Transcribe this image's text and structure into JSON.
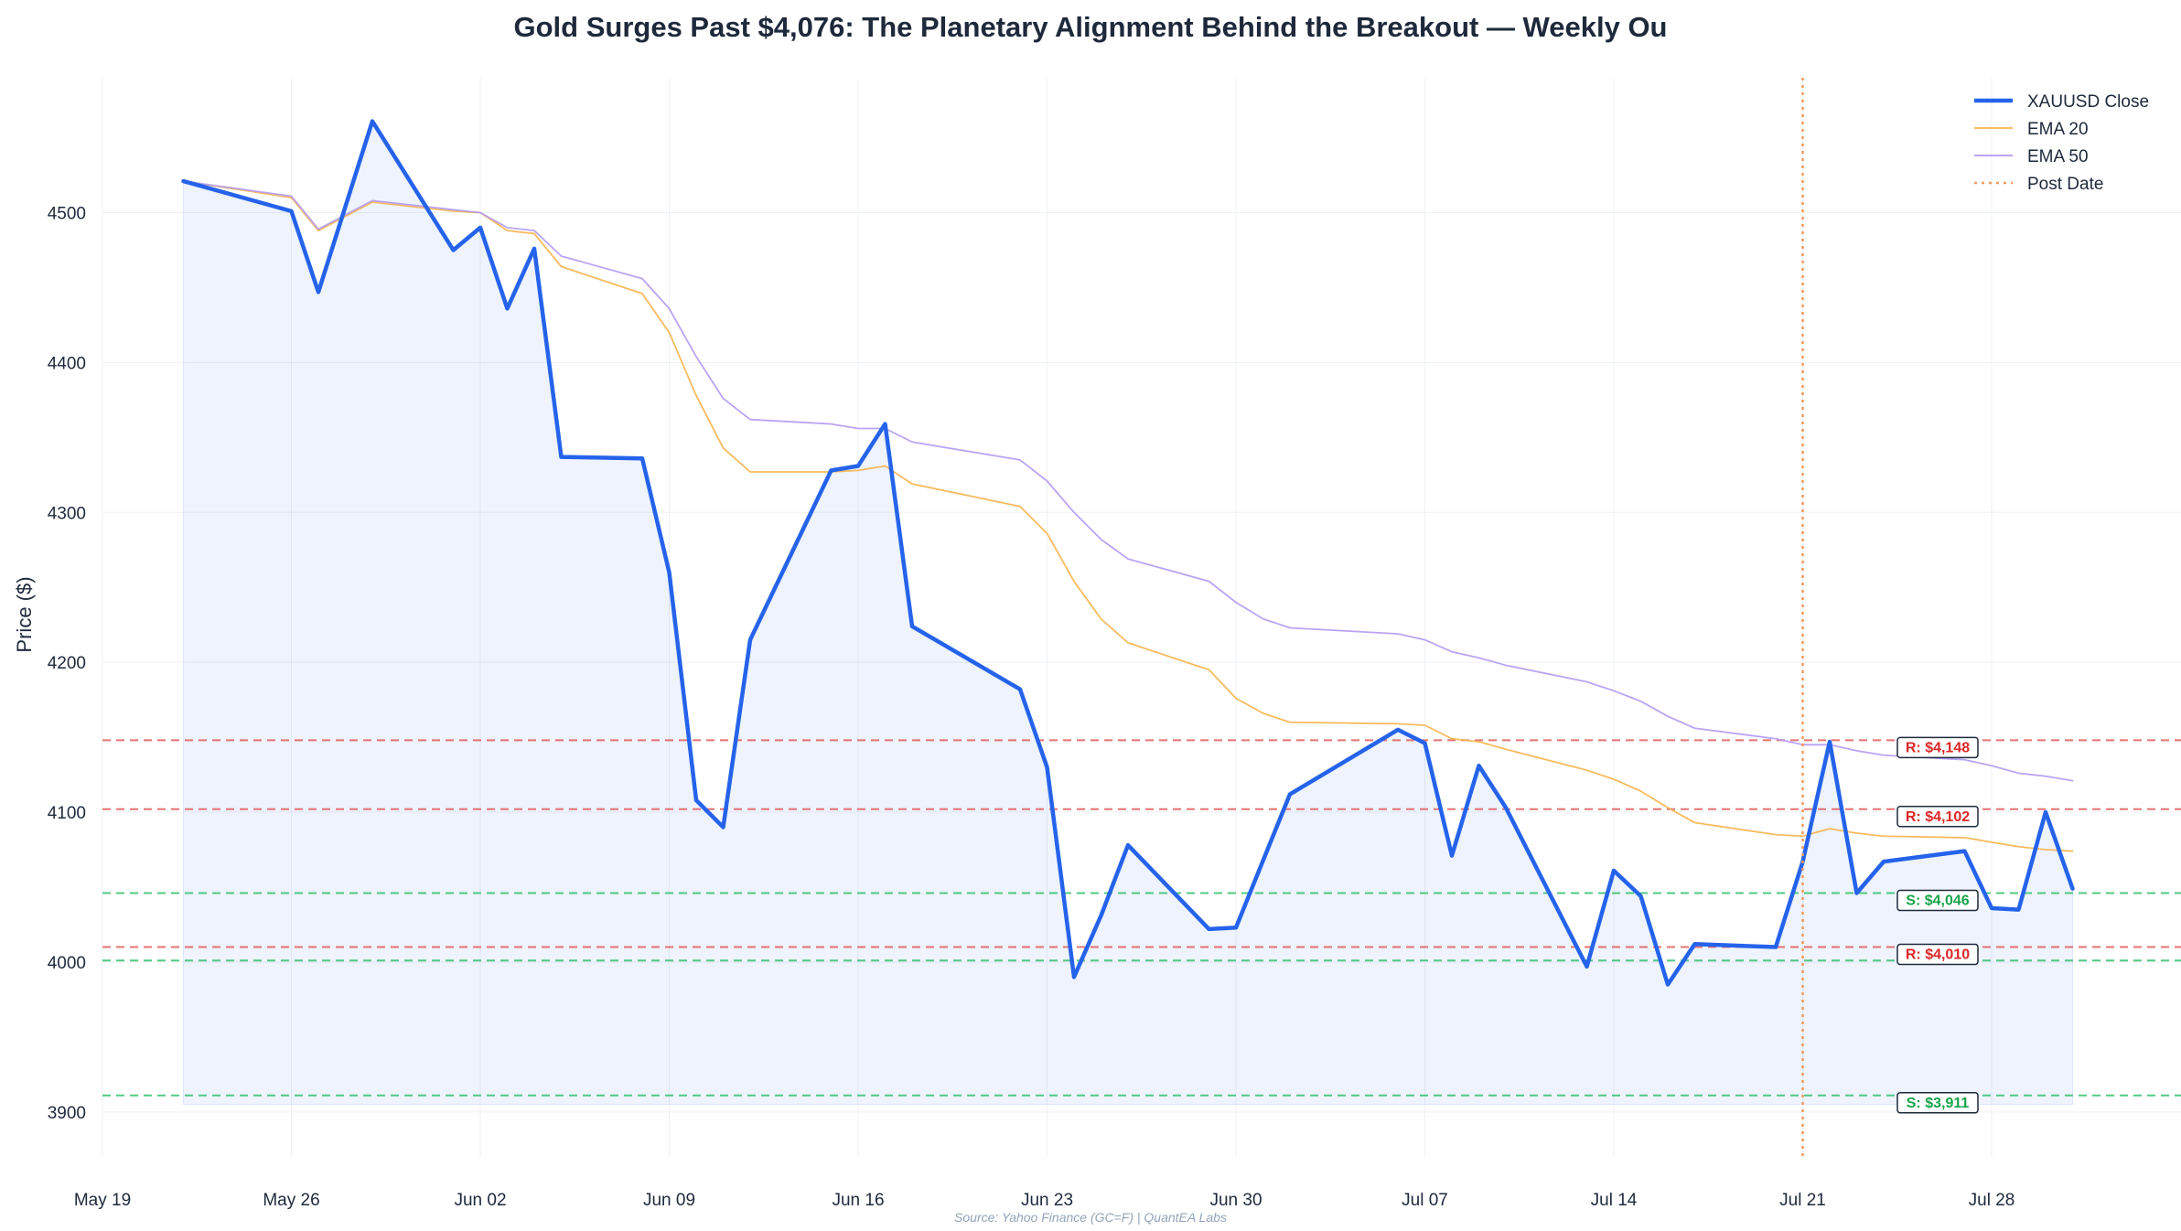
{
  "chart_data": {
    "type": "line",
    "title": "Gold Surges Past $4,076: The Planetary Alignment Behind the Breakout — Weekly Ou",
    "xlabel": "",
    "ylabel": "Price ($)",
    "source": "Source: Yahoo Finance (GC=F) | QuantEA Labs",
    "ylim": [
      3870,
      4590
    ],
    "xlim": [
      "2025-05-19",
      "2025-08-01"
    ],
    "x_ticks": [
      {
        "date": "2025-05-19",
        "label": "May 19"
      },
      {
        "date": "2025-05-26",
        "label": "May 26"
      },
      {
        "date": "2025-06-02",
        "label": "Jun 02"
      },
      {
        "date": "2025-06-09",
        "label": "Jun 09"
      },
      {
        "date": "2025-06-16",
        "label": "Jun 16"
      },
      {
        "date": "2025-06-23",
        "label": "Jun 23"
      },
      {
        "date": "2025-06-30",
        "label": "Jun 30"
      },
      {
        "date": "2025-07-07",
        "label": "Jul 07"
      },
      {
        "date": "2025-07-14",
        "label": "Jul 14"
      },
      {
        "date": "2025-07-21",
        "label": "Jul 21"
      },
      {
        "date": "2025-07-28",
        "label": "Jul 28"
      }
    ],
    "y_ticks": [
      3900,
      4000,
      4100,
      4200,
      4300,
      4400,
      4500
    ],
    "grid": true,
    "legend_position": "top-right",
    "series": [
      {
        "name": "XAUUSD Close",
        "color": "#2563eb",
        "x": [
          "2025-05-22",
          "2025-05-26",
          "2025-05-27",
          "2025-05-29",
          "2025-06-01",
          "2025-06-02",
          "2025-06-03",
          "2025-06-04",
          "2025-06-05",
          "2025-06-08",
          "2025-06-09",
          "2025-06-10",
          "2025-06-11",
          "2025-06-12",
          "2025-06-15",
          "2025-06-16",
          "2025-06-17",
          "2025-06-18",
          "2025-06-22",
          "2025-06-23",
          "2025-06-24",
          "2025-06-25",
          "2025-06-26",
          "2025-06-29",
          "2025-06-30",
          "2025-07-02",
          "2025-07-06",
          "2025-07-07",
          "2025-07-08",
          "2025-07-09",
          "2025-07-10",
          "2025-07-13",
          "2025-07-14",
          "2025-07-15",
          "2025-07-16",
          "2025-07-17",
          "2025-07-20",
          "2025-07-21",
          "2025-07-22",
          "2025-07-23",
          "2025-07-24",
          "2025-07-27",
          "2025-07-28",
          "2025-07-29",
          "2025-07-30",
          "2025-07-31"
        ],
        "values": [
          4521,
          4501,
          4447,
          4561,
          4475,
          4490,
          4436,
          4476,
          4337,
          4336,
          4260,
          4108,
          4090,
          4215,
          4328,
          4331,
          4359,
          4224,
          4182,
          4130,
          3990,
          4031,
          4078,
          4022,
          4023,
          4112,
          4155,
          4146,
          4071,
          4131,
          4103,
          3997,
          4061,
          4044,
          3985,
          4012,
          4010,
          4067,
          4147,
          4046,
          4067,
          4074,
          4036,
          4035,
          4100,
          4049
        ]
      },
      {
        "name": "EMA 20",
        "color": "#f6b44e",
        "x": [
          "2025-05-22",
          "2025-05-26",
          "2025-05-27",
          "2025-05-29",
          "2025-06-01",
          "2025-06-02",
          "2025-06-03",
          "2025-06-04",
          "2025-06-05",
          "2025-06-08",
          "2025-06-09",
          "2025-06-10",
          "2025-06-11",
          "2025-06-12",
          "2025-06-15",
          "2025-06-16",
          "2025-06-17",
          "2025-06-18",
          "2025-06-22",
          "2025-06-23",
          "2025-06-24",
          "2025-06-25",
          "2025-06-26",
          "2025-06-29",
          "2025-06-30",
          "2025-07-01",
          "2025-07-02",
          "2025-07-06",
          "2025-07-07",
          "2025-07-08",
          "2025-07-09",
          "2025-07-10",
          "2025-07-13",
          "2025-07-14",
          "2025-07-15",
          "2025-07-16",
          "2025-07-17",
          "2025-07-20",
          "2025-07-21",
          "2025-07-22",
          "2025-07-23",
          "2025-07-24",
          "2025-07-27",
          "2025-07-28",
          "2025-07-29",
          "2025-07-30",
          "2025-07-31"
        ],
        "values": [
          4521,
          4510,
          4488,
          4507,
          4501,
          4500,
          4488,
          4486,
          4464,
          4446,
          4420,
          4378,
          4343,
          4327,
          4327,
          4328,
          4331,
          4319,
          4304,
          4286,
          4254,
          4229,
          4213,
          4195,
          4176,
          4166,
          4160,
          4159,
          4158,
          4149,
          4147,
          4142,
          4128,
          4122,
          4114,
          4103,
          4093,
          4085,
          4084,
          4089,
          4086,
          4084,
          4083,
          4080,
          4077,
          4075,
          4074
        ]
      },
      {
        "name": "EMA 50",
        "color": "#b39af3",
        "x": [
          "2025-05-22",
          "2025-05-26",
          "2025-05-27",
          "2025-05-29",
          "2025-06-01",
          "2025-06-02",
          "2025-06-03",
          "2025-06-04",
          "2025-06-05",
          "2025-06-08",
          "2025-06-09",
          "2025-06-10",
          "2025-06-11",
          "2025-06-12",
          "2025-06-15",
          "2025-06-16",
          "2025-06-17",
          "2025-06-18",
          "2025-06-22",
          "2025-06-23",
          "2025-06-24",
          "2025-06-25",
          "2025-06-26",
          "2025-06-29",
          "2025-06-30",
          "2025-07-01",
          "2025-07-02",
          "2025-07-06",
          "2025-07-07",
          "2025-07-08",
          "2025-07-09",
          "2025-07-10",
          "2025-07-13",
          "2025-07-14",
          "2025-07-15",
          "2025-07-16",
          "2025-07-17",
          "2025-07-20",
          "2025-07-21",
          "2025-07-22",
          "2025-07-23",
          "2025-07-24",
          "2025-07-27",
          "2025-07-28",
          "2025-07-29",
          "2025-07-30",
          "2025-07-31"
        ],
        "values": [
          4521,
          4511,
          4489,
          4508,
          4502,
          4500,
          4490,
          4488,
          4471,
          4456,
          4436,
          4404,
          4376,
          4362,
          4359,
          4356,
          4356,
          4347,
          4335,
          4321,
          4300,
          4282,
          4269,
          4254,
          4240,
          4229,
          4223,
          4219,
          4215,
          4207,
          4203,
          4198,
          4187,
          4181,
          4174,
          4164,
          4156,
          4149,
          4145,
          4145,
          4141,
          4138,
          4135,
          4131,
          4126,
          4124,
          4121
        ]
      }
    ],
    "post_date": {
      "name": "Post Date",
      "date": "2025-07-21",
      "color": "#f49a5c"
    },
    "levels": [
      {
        "kind": "resistance",
        "value": 4148,
        "label": "R: $4,148",
        "color": "#e05a5a"
      },
      {
        "kind": "resistance",
        "value": 4102,
        "label": "R: $4,102",
        "color": "#e05a5a"
      },
      {
        "kind": "support",
        "value": 4046,
        "label": "S: $4,046",
        "color": "#33c16e"
      },
      {
        "kind": "resistance",
        "value": 4010,
        "label": "R: $4,010",
        "color": "#e05a5a"
      },
      {
        "kind": "support",
        "value": 4001,
        "label": "",
        "color": "#33c16e"
      },
      {
        "kind": "support",
        "value": 3911,
        "label": "S: $3,911",
        "color": "#33c16e"
      }
    ],
    "label_colors": {
      "resistance": "#dc2626",
      "support": "#16a34a"
    }
  }
}
